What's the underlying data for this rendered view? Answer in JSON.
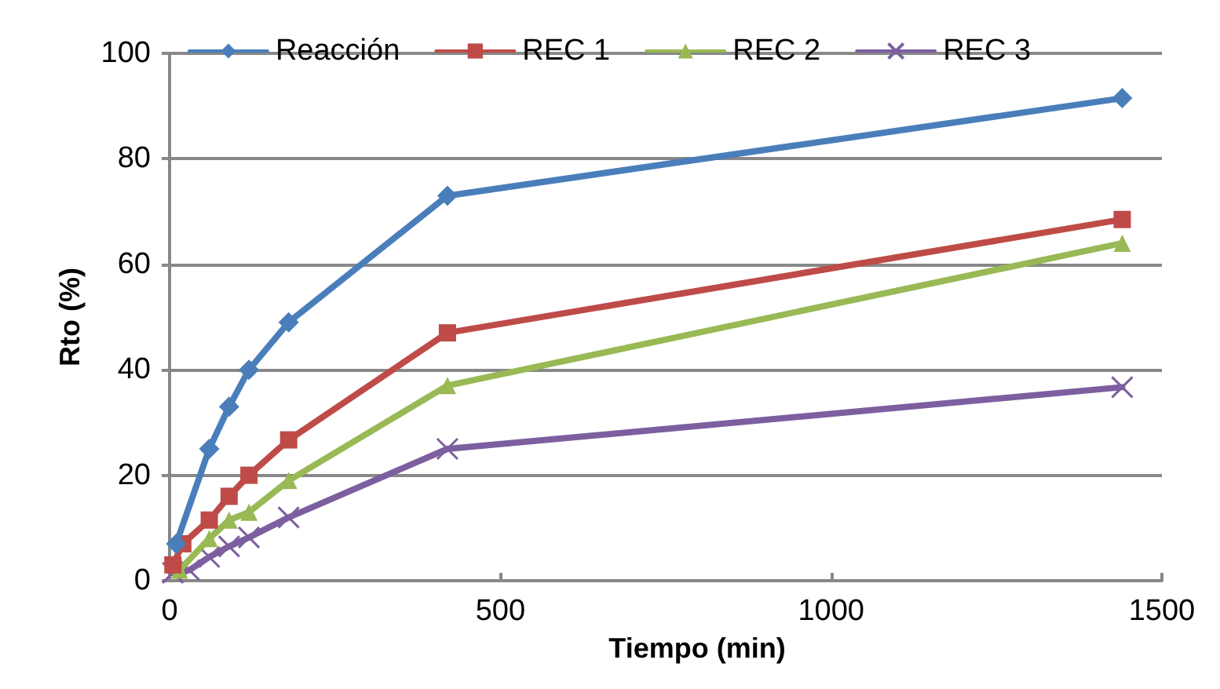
{
  "chart_data": {
    "type": "line",
    "xlabel": "Tiempo (min)",
    "ylabel": "Rto (%)",
    "xlim": [
      0,
      1500
    ],
    "xticks": [
      0,
      500,
      1000,
      1500
    ],
    "ylim": [
      0,
      100
    ],
    "yticks": [
      0,
      20,
      40,
      60,
      80,
      100
    ],
    "grid": "y",
    "legend": "top",
    "line_style": "solid",
    "series": [
      {
        "name": "Reacción",
        "color": "#4a7ebb",
        "marker": "diamond",
        "x": [
          10,
          60,
          90,
          120,
          180,
          420,
          1440
        ],
        "values": [
          7,
          25,
          33,
          40,
          49,
          73,
          91.5
        ]
      },
      {
        "name": "REC 1",
        "color": "#be4b48",
        "marker": "square",
        "x": [
          5,
          20,
          60,
          90,
          120,
          180,
          420,
          1440
        ],
        "values": [
          3,
          7,
          11.5,
          16,
          20,
          26.7,
          47,
          68.5
        ]
      },
      {
        "name": "REC 2",
        "color": "#98b954",
        "marker": "triangle",
        "x": [
          15,
          60,
          90,
          120,
          180,
          420,
          1440
        ],
        "values": [
          2,
          8,
          11.5,
          13,
          19,
          37,
          64
        ]
      },
      {
        "name": "REC 3",
        "color": "#7d5fa0",
        "marker": "cross",
        "x": [
          5,
          30,
          60,
          90,
          120,
          180,
          420,
          1440
        ],
        "values": [
          1.5,
          2,
          4.5,
          6.5,
          8.2,
          12,
          25,
          36.7
        ]
      }
    ]
  }
}
